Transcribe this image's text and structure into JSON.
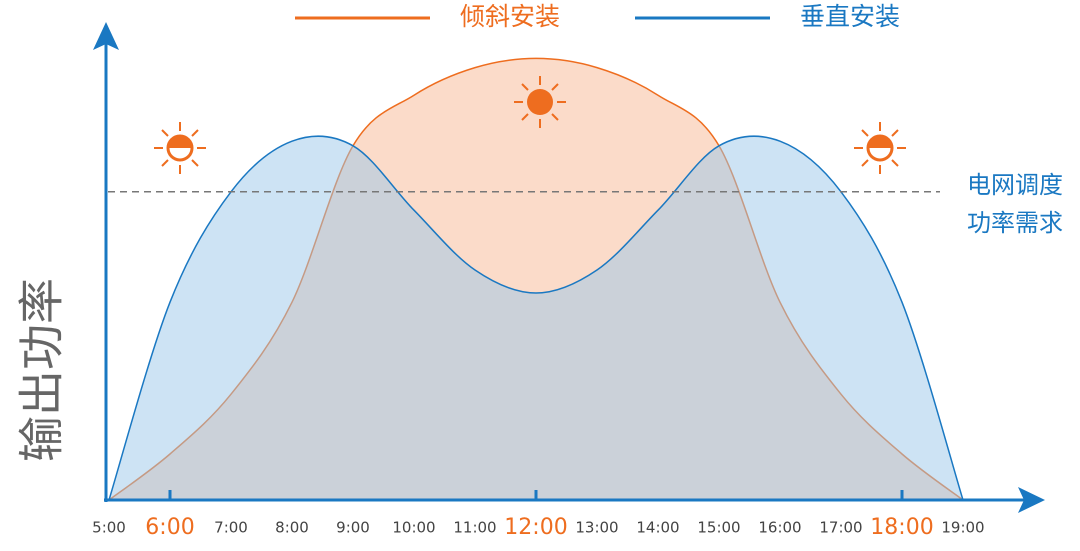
{
  "chart_data": {
    "type": "area",
    "y_label": "输出功率",
    "categories": [
      "5:00",
      "6:00",
      "7:00",
      "8:00",
      "9:00",
      "10:00",
      "11:00",
      "12:00",
      "13:00",
      "14:00",
      "15:00",
      "16:00",
      "17:00",
      "18:00",
      "19:00"
    ],
    "highlight": [
      1,
      7,
      13
    ],
    "highlight_color": "#ee6d1f",
    "series": [
      {
        "name": "倾斜安装",
        "color": "#ee6d1f",
        "fill": "#f7b894",
        "values": [
          0,
          10,
          23,
          43,
          77,
          88,
          94,
          96,
          94,
          88,
          77,
          43,
          23,
          10,
          0
        ]
      },
      {
        "name": "垂直安装",
        "color": "#1a78c2",
        "fill": "#9cc7ea",
        "values": [
          0,
          43,
          67,
          78,
          77,
          63,
          50,
          45,
          50,
          63,
          77,
          78,
          67,
          43,
          0
        ]
      }
    ],
    "reference_line": {
      "value": 67,
      "label": [
        "电网调度",
        "功率需求"
      ],
      "color": "#1a78c2"
    },
    "ylim": [
      0,
      100
    ],
    "legend": "top"
  }
}
